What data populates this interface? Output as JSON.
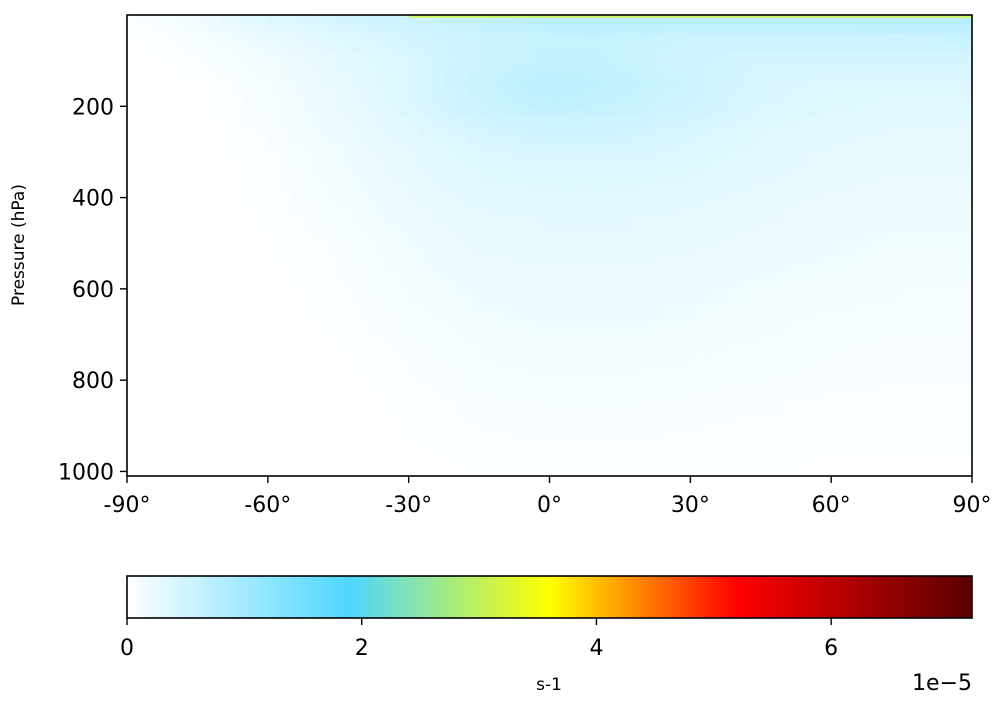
{
  "chart_data": {
    "type": "heatmap",
    "title": "",
    "xlabel": "",
    "ylabel": "Pressure (hPa)",
    "x_ticks": [
      "-90°",
      "-60°",
      "-30°",
      "0°",
      "30°",
      "60°",
      "90°"
    ],
    "x_tick_values": [
      -90,
      -60,
      -30,
      0,
      30,
      60,
      90
    ],
    "y_ticks": [
      "200",
      "400",
      "600",
      "800",
      "1000"
    ],
    "y_tick_values": [
      200,
      400,
      600,
      800,
      1000
    ],
    "xlim": [
      -90,
      90
    ],
    "ylim": [
      1010,
      0
    ],
    "y_inverted": true,
    "grid": false,
    "colorbar": {
      "label": "s-1",
      "scale_label": "1e−5",
      "ticks": [
        "0",
        "2",
        "4",
        "6"
      ],
      "tick_values": [
        0,
        2,
        4,
        6
      ],
      "range": [
        0,
        7.2
      ],
      "colormap": [
        {
          "value": 0.0,
          "color": "#ffffff"
        },
        {
          "value": 1.9,
          "color": "#4dd6ff"
        },
        {
          "value": 3.6,
          "color": "#ffff00"
        },
        {
          "value": 5.2,
          "color": "#ff0000"
        },
        {
          "value": 7.2,
          "color": "#5a0000"
        }
      ]
    },
    "field": {
      "description_units": "s-1 x 1e-5",
      "lat": [
        -90,
        -75,
        -60,
        -45,
        -30,
        -15,
        0,
        15,
        30,
        45,
        60,
        75,
        90
      ],
      "pressure": [
        10,
        50,
        100,
        150,
        200,
        250,
        300,
        400,
        500,
        600,
        700,
        800,
        900,
        1000
      ],
      "values": [
        [
          0.05,
          0.15,
          0.35,
          0.45,
          0.55,
          0.65,
          0.75,
          0.75,
          0.75,
          0.75,
          0.75,
          0.8,
          0.8
        ],
        [
          0.02,
          0.1,
          0.22,
          0.35,
          0.45,
          0.55,
          0.6,
          0.6,
          0.55,
          0.55,
          0.55,
          0.55,
          0.6
        ],
        [
          0.0,
          0.06,
          0.15,
          0.28,
          0.4,
          0.55,
          0.62,
          0.6,
          0.5,
          0.45,
          0.45,
          0.45,
          0.45
        ],
        [
          0.0,
          0.03,
          0.12,
          0.25,
          0.4,
          0.58,
          0.72,
          0.65,
          0.52,
          0.42,
          0.38,
          0.38,
          0.38
        ],
        [
          0.0,
          0.02,
          0.1,
          0.22,
          0.38,
          0.55,
          0.65,
          0.6,
          0.5,
          0.4,
          0.35,
          0.32,
          0.32
        ],
        [
          0.0,
          0.02,
          0.08,
          0.2,
          0.32,
          0.45,
          0.52,
          0.5,
          0.42,
          0.35,
          0.3,
          0.28,
          0.28
        ],
        [
          0.0,
          0.01,
          0.06,
          0.16,
          0.28,
          0.38,
          0.42,
          0.42,
          0.38,
          0.32,
          0.28,
          0.25,
          0.25
        ],
        [
          0.0,
          0.01,
          0.05,
          0.12,
          0.22,
          0.3,
          0.32,
          0.32,
          0.3,
          0.26,
          0.22,
          0.2,
          0.2
        ],
        [
          0.0,
          0.0,
          0.03,
          0.08,
          0.16,
          0.24,
          0.26,
          0.26,
          0.24,
          0.2,
          0.17,
          0.15,
          0.15
        ],
        [
          0.0,
          0.0,
          0.02,
          0.06,
          0.12,
          0.18,
          0.2,
          0.2,
          0.18,
          0.15,
          0.13,
          0.12,
          0.12
        ],
        [
          0.0,
          0.0,
          0.01,
          0.04,
          0.09,
          0.13,
          0.15,
          0.15,
          0.14,
          0.12,
          0.1,
          0.09,
          0.09
        ],
        [
          0.0,
          0.0,
          0.0,
          0.02,
          0.06,
          0.1,
          0.11,
          0.11,
          0.1,
          0.09,
          0.08,
          0.07,
          0.07
        ],
        [
          0.0,
          0.0,
          0.0,
          0.01,
          0.04,
          0.07,
          0.08,
          0.08,
          0.07,
          0.06,
          0.05,
          0.05,
          0.05
        ],
        [
          0.0,
          0.0,
          0.0,
          0.0,
          0.02,
          0.04,
          0.05,
          0.05,
          0.05,
          0.04,
          0.03,
          0.03,
          0.03
        ]
      ]
    }
  }
}
